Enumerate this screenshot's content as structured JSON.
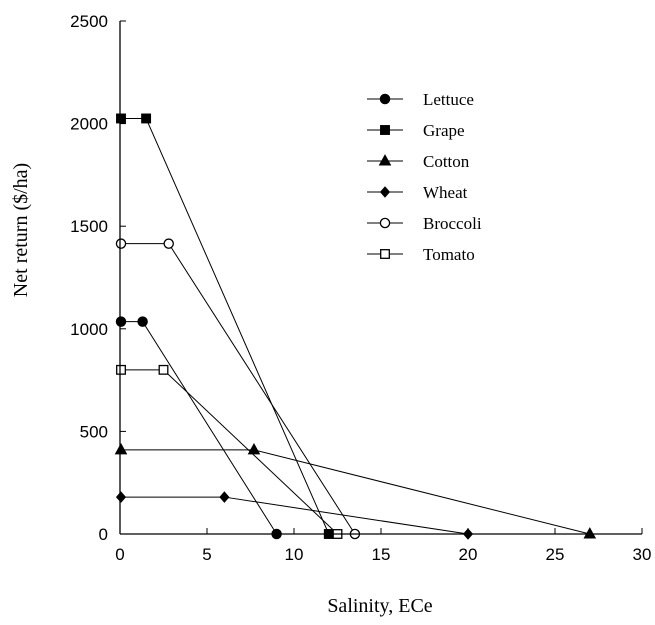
{
  "chart_data": {
    "type": "line",
    "title": "",
    "xlabel": "Salinity, ECe",
    "ylabel": "Net return ($/ha)",
    "xlim": [
      0,
      30
    ],
    "ylim": [
      0,
      2500
    ],
    "xticks": [
      "0",
      "5",
      "10",
      "15",
      "20",
      "25",
      "30"
    ],
    "yticks": [
      "0",
      "500",
      "1000",
      "1500",
      "2000",
      "2500"
    ],
    "grid": false,
    "legend_position": "top-right",
    "series": [
      {
        "name": "Lettuce",
        "marker": "filled-circle",
        "x": [
          0,
          1.3,
          9.0
        ],
        "y": [
          1035,
          1035,
          0
        ]
      },
      {
        "name": "Grape",
        "marker": "filled-square",
        "x": [
          0,
          1.5,
          12.0
        ],
        "y": [
          2025,
          2025,
          0
        ]
      },
      {
        "name": "Cotton",
        "marker": "filled-triangle",
        "x": [
          0,
          7.7,
          27.0
        ],
        "y": [
          410,
          410,
          0
        ]
      },
      {
        "name": "Wheat",
        "marker": "filled-diamond",
        "x": [
          0,
          6.0,
          20.0
        ],
        "y": [
          180,
          180,
          0
        ]
      },
      {
        "name": "Broccoli",
        "marker": "open-circle",
        "x": [
          0,
          2.8,
          13.5
        ],
        "y": [
          1415,
          1415,
          0
        ]
      },
      {
        "name": "Tomato",
        "marker": "open-square",
        "x": [
          0,
          2.5,
          12.5
        ],
        "y": [
          800,
          800,
          0
        ]
      }
    ]
  }
}
